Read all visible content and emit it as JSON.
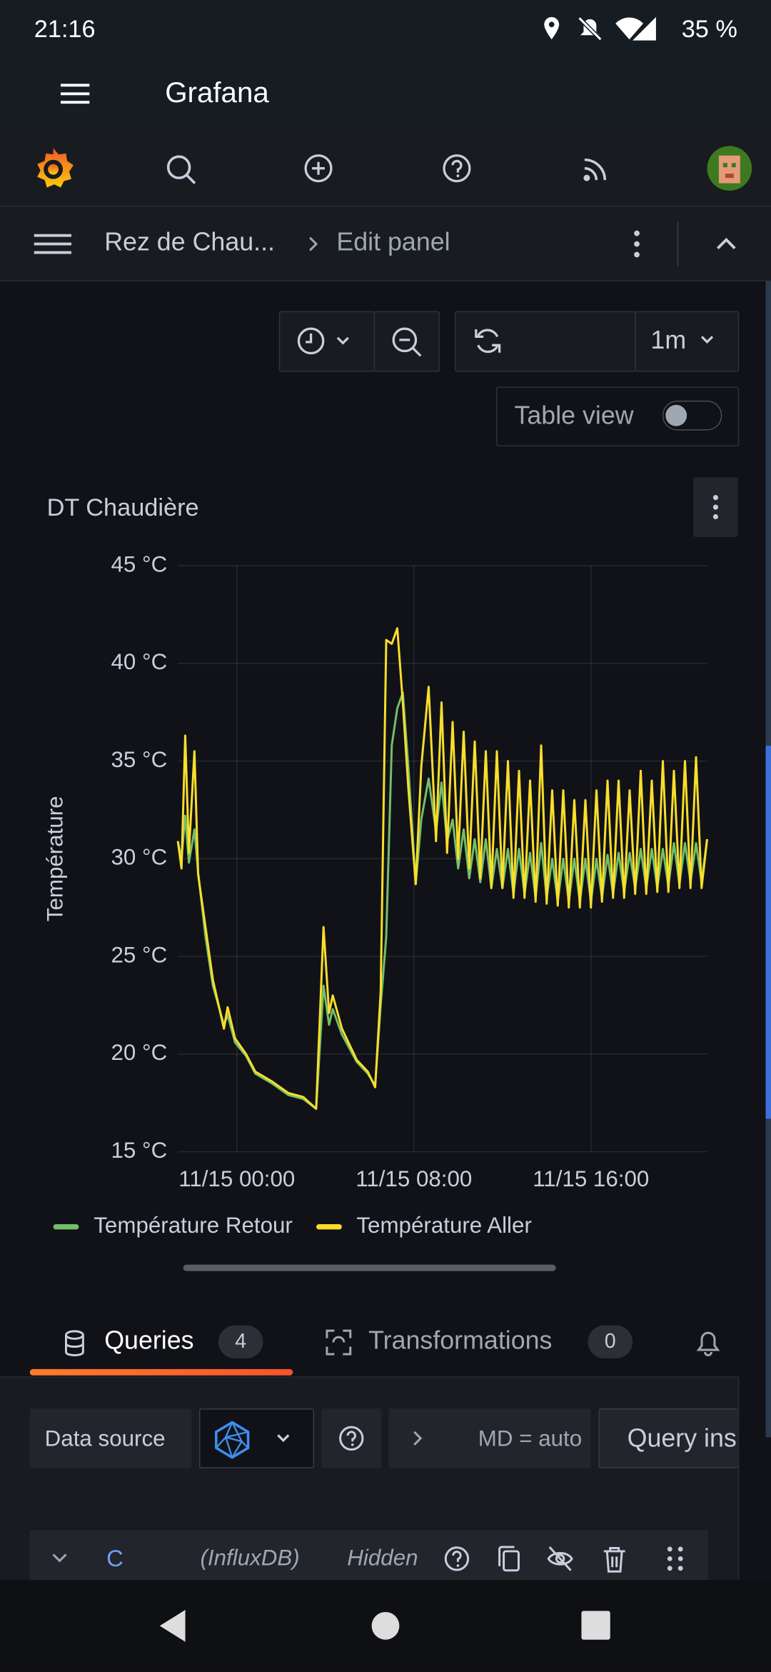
{
  "status_bar": {
    "time": "21:16",
    "battery": "35 %"
  },
  "app_bar": {
    "title": "Grafana"
  },
  "breadcrumb": {
    "dashboard": "Rez de Chau...",
    "page": "Edit panel"
  },
  "toolbar": {
    "refresh_interval": "1m",
    "table_view": "Table view"
  },
  "chart_data": {
    "type": "line",
    "title": "DT Chaudière",
    "y_label": "Température",
    "x": [
      "11/14 21:20",
      "11/14 21:30",
      "11/14 21:40",
      "11/14 21:50",
      "11/14 22:05",
      "11/14 22:15",
      "11/14 22:35",
      "11/14 22:55",
      "11/14 23:25",
      "11/14 23:35",
      "11/14 23:55",
      "11/15 00:25",
      "11/15 00:50",
      "11/15 01:35",
      "11/15 02:20",
      "11/15 03:00",
      "11/15 03:35",
      "11/15 03:55",
      "11/15 04:10",
      "11/15 04:20",
      "11/15 04:45",
      "11/15 05:25",
      "11/15 05:55",
      "11/15 06:15",
      "11/15 06:30",
      "11/15 06:45",
      "11/15 07:00",
      "11/15 07:15",
      "11/15 07:30",
      "11/15 07:45",
      "11/15 08:05",
      "11/15 08:20",
      "11/15 08:40",
      "11/15 09:00",
      "11/15 09:15",
      "11/15 09:30",
      "11/15 09:45",
      "11/15 10:00",
      "11/15 10:15",
      "11/15 10:30",
      "11/15 10:45",
      "11/15 11:00",
      "11/15 11:15",
      "11/15 11:30",
      "11/15 11:45",
      "11/15 12:00",
      "11/15 12:15",
      "11/15 12:30",
      "11/15 12:45",
      "11/15 13:00",
      "11/15 13:15",
      "11/15 13:30",
      "11/15 13:45",
      "11/15 14:00",
      "11/15 14:15",
      "11/15 14:30",
      "11/15 14:45",
      "11/15 15:00",
      "11/15 15:15",
      "11/15 15:30",
      "11/15 15:45",
      "11/15 16:00",
      "11/15 16:15",
      "11/15 16:30",
      "11/15 16:45",
      "11/15 17:00",
      "11/15 17:15",
      "11/15 17:30",
      "11/15 17:45",
      "11/15 18:00",
      "11/15 18:15",
      "11/15 18:30",
      "11/15 18:45",
      "11/15 19:00",
      "11/15 19:15",
      "11/15 19:30",
      "11/15 19:45",
      "11/15 20:00",
      "11/15 20:15",
      "11/15 20:30",
      "11/15 20:45",
      "11/15 21:00",
      "11/15 21:15"
    ],
    "series": [
      {
        "name": "Température Retour",
        "color": "#73bf69",
        "values": [
          30.9,
          30,
          32.2,
          29.8,
          31.5,
          29.3,
          26,
          23.5,
          21.5,
          22,
          20.6,
          19.9,
          19,
          18.5,
          17.9,
          17.7,
          17.2,
          23.5,
          21.5,
          22.3,
          21,
          19.6,
          19,
          18.4,
          22.5,
          26,
          35.8,
          37.7,
          38.5,
          34.7,
          28.7,
          32,
          34.1,
          31.4,
          33.9,
          30.9,
          32,
          29.5,
          31.5,
          29,
          31,
          28.8,
          31,
          28.5,
          30.5,
          28.5,
          30.5,
          28.2,
          30.5,
          28.2,
          30.3,
          28,
          30.8,
          28,
          30,
          27.8,
          30,
          27.8,
          30,
          27.8,
          30,
          27.8,
          30,
          28,
          30.2,
          28.2,
          30.3,
          28.3,
          30.3,
          28.5,
          30.5,
          28.5,
          30.5,
          28.5,
          30.5,
          28.6,
          30.8,
          28.7,
          30.8,
          28.8,
          30.8,
          28.8,
          31
        ]
      },
      {
        "name": "Température Aller",
        "color": "#fade2a",
        "values": [
          30.9,
          29.5,
          36.3,
          30.3,
          35.5,
          29.2,
          26.5,
          23.8,
          21.3,
          22.4,
          20.8,
          20,
          19.1,
          18.6,
          18,
          17.8,
          17.2,
          26.5,
          22.1,
          23,
          21.3,
          19.7,
          19.1,
          18.3,
          23.2,
          41.2,
          41,
          41.8,
          38,
          33.6,
          28.7,
          34.7,
          38.8,
          30.9,
          38,
          30.3,
          37,
          30,
          36.5,
          29.5,
          36,
          29,
          35.5,
          28.5,
          35.5,
          28.5,
          35,
          28,
          34.5,
          28,
          34,
          27.8,
          35.8,
          27.7,
          33.5,
          27.6,
          33.5,
          27.5,
          33,
          27.5,
          33,
          27.5,
          33.5,
          27.8,
          34,
          28,
          34,
          28,
          33.5,
          28.2,
          34.5,
          28.2,
          34,
          28.3,
          35,
          28.3,
          34.5,
          28.5,
          35,
          28.5,
          35.2,
          28.5,
          31
        ]
      }
    ],
    "xlim": [
      "11/14 21:20",
      "11/15 21:15"
    ],
    "xticks": [
      "11/15 00:00",
      "11/15 08:00",
      "11/15 16:00"
    ],
    "ylim": [
      15,
      45
    ],
    "yticks": [
      {
        "value": 15,
        "label": "15 °C"
      },
      {
        "value": 20,
        "label": "20 °C"
      },
      {
        "value": 25,
        "label": "25 °C"
      },
      {
        "value": 30,
        "label": "30 °C"
      },
      {
        "value": 35,
        "label": "35 °C"
      },
      {
        "value": 40,
        "label": "40 °C"
      },
      {
        "value": 45,
        "label": "45 °C"
      }
    ],
    "grid": true
  },
  "tabs": [
    {
      "label": "Queries",
      "count": 4
    },
    {
      "label": "Transformations",
      "count": 0
    }
  ],
  "query_editor": {
    "data_source_label": "Data source",
    "options": "MD = auto",
    "query_inspector": "Query inspector"
  },
  "query": {
    "ref_id": "C",
    "data_source": "(InfluxDB)",
    "state": "Hidden"
  }
}
